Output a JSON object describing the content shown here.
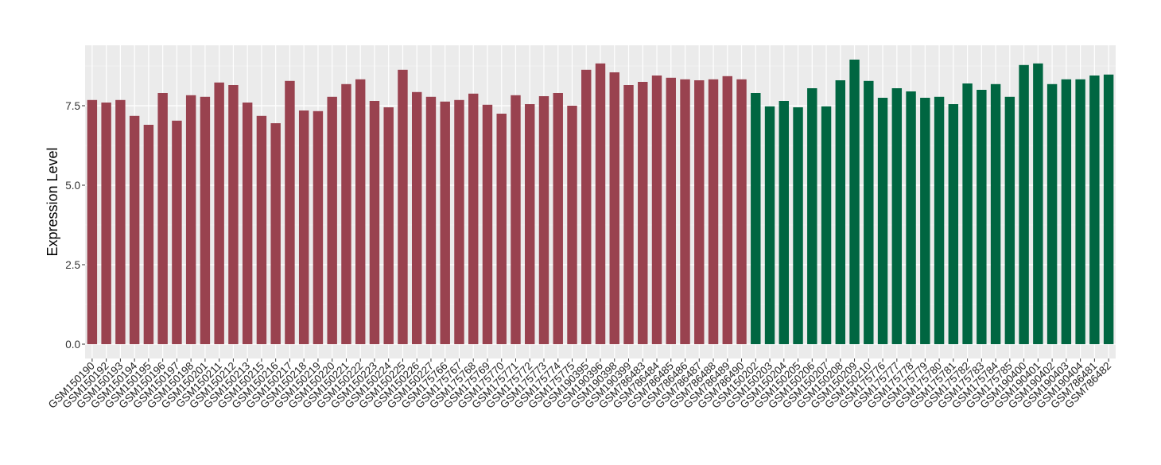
{
  "chart_data": {
    "type": "bar",
    "title": "",
    "xlabel": "",
    "ylabel": "Expression Level",
    "ylim": [
      0,
      9.4
    ],
    "yticks": [
      0,
      2.5,
      5,
      7.5
    ],
    "ytick_labels": [
      "0.0",
      "2.5",
      "5.0",
      "7.5"
    ],
    "grid": true,
    "legend": "none",
    "group_colors": [
      "#99424F",
      "#006641"
    ],
    "categories": [
      "GSM150190",
      "GSM150192",
      "GSM150193",
      "GSM150194",
      "GSM150195",
      "GSM150196",
      "GSM150197",
      "GSM150198",
      "GSM150201",
      "GSM150211",
      "GSM150212",
      "GSM150213",
      "GSM150215",
      "GSM150216",
      "GSM150217",
      "GSM150218",
      "GSM150219",
      "GSM150220",
      "GSM150221",
      "GSM150222",
      "GSM150223",
      "GSM150224",
      "GSM150225",
      "GSM150226",
      "GSM150227",
      "GSM175766",
      "GSM175767",
      "GSM175768",
      "GSM175769",
      "GSM175770",
      "GSM175771",
      "GSM175772",
      "GSM175773",
      "GSM175774",
      "GSM175775",
      "GSM190395",
      "GSM190396",
      "GSM190398",
      "GSM190399",
      "GSM786483",
      "GSM786484",
      "GSM786485",
      "GSM786486",
      "GSM786487",
      "GSM786488",
      "GSM786489",
      "GSM786490",
      "GSM150202",
      "GSM150203",
      "GSM150204",
      "GSM150205",
      "GSM150206",
      "GSM150207",
      "GSM150208",
      "GSM150209",
      "GSM150210",
      "GSM175776",
      "GSM175777",
      "GSM175778",
      "GSM175779",
      "GSM175780",
      "GSM175781",
      "GSM175782",
      "GSM175783",
      "GSM175784",
      "GSM175785",
      "GSM190400",
      "GSM190401",
      "GSM190402",
      "GSM190403",
      "GSM190404",
      "GSM786481",
      "GSM786482"
    ],
    "values": [
      7.68,
      7.6,
      7.68,
      7.18,
      6.9,
      7.9,
      7.03,
      7.83,
      7.78,
      8.23,
      8.15,
      7.6,
      7.18,
      6.95,
      8.28,
      7.35,
      7.33,
      7.78,
      8.18,
      8.33,
      7.65,
      7.45,
      8.63,
      7.93,
      7.78,
      7.63,
      7.68,
      7.88,
      7.53,
      7.25,
      7.83,
      7.55,
      7.8,
      7.9,
      7.5,
      8.63,
      8.83,
      8.55,
      8.15,
      8.25,
      8.45,
      8.38,
      8.33,
      8.3,
      8.33,
      8.43,
      8.33,
      7.9,
      7.48,
      7.65,
      7.45,
      8.05,
      7.48,
      8.3,
      8.95,
      8.28,
      7.75,
      8.05,
      7.95,
      7.75,
      7.78,
      7.55,
      8.2,
      8.0,
      8.18,
      7.78,
      8.78,
      8.83,
      8.18,
      8.33,
      8.33,
      8.45,
      8.48
    ],
    "groups": [
      0,
      0,
      0,
      0,
      0,
      0,
      0,
      0,
      0,
      0,
      0,
      0,
      0,
      0,
      0,
      0,
      0,
      0,
      0,
      0,
      0,
      0,
      0,
      0,
      0,
      0,
      0,
      0,
      0,
      0,
      0,
      0,
      0,
      0,
      0,
      0,
      0,
      0,
      0,
      0,
      0,
      0,
      0,
      0,
      0,
      0,
      0,
      1,
      1,
      1,
      1,
      1,
      1,
      1,
      1,
      1,
      1,
      1,
      1,
      1,
      1,
      1,
      1,
      1,
      1,
      1,
      1,
      1,
      1,
      1,
      1,
      1,
      1
    ]
  }
}
